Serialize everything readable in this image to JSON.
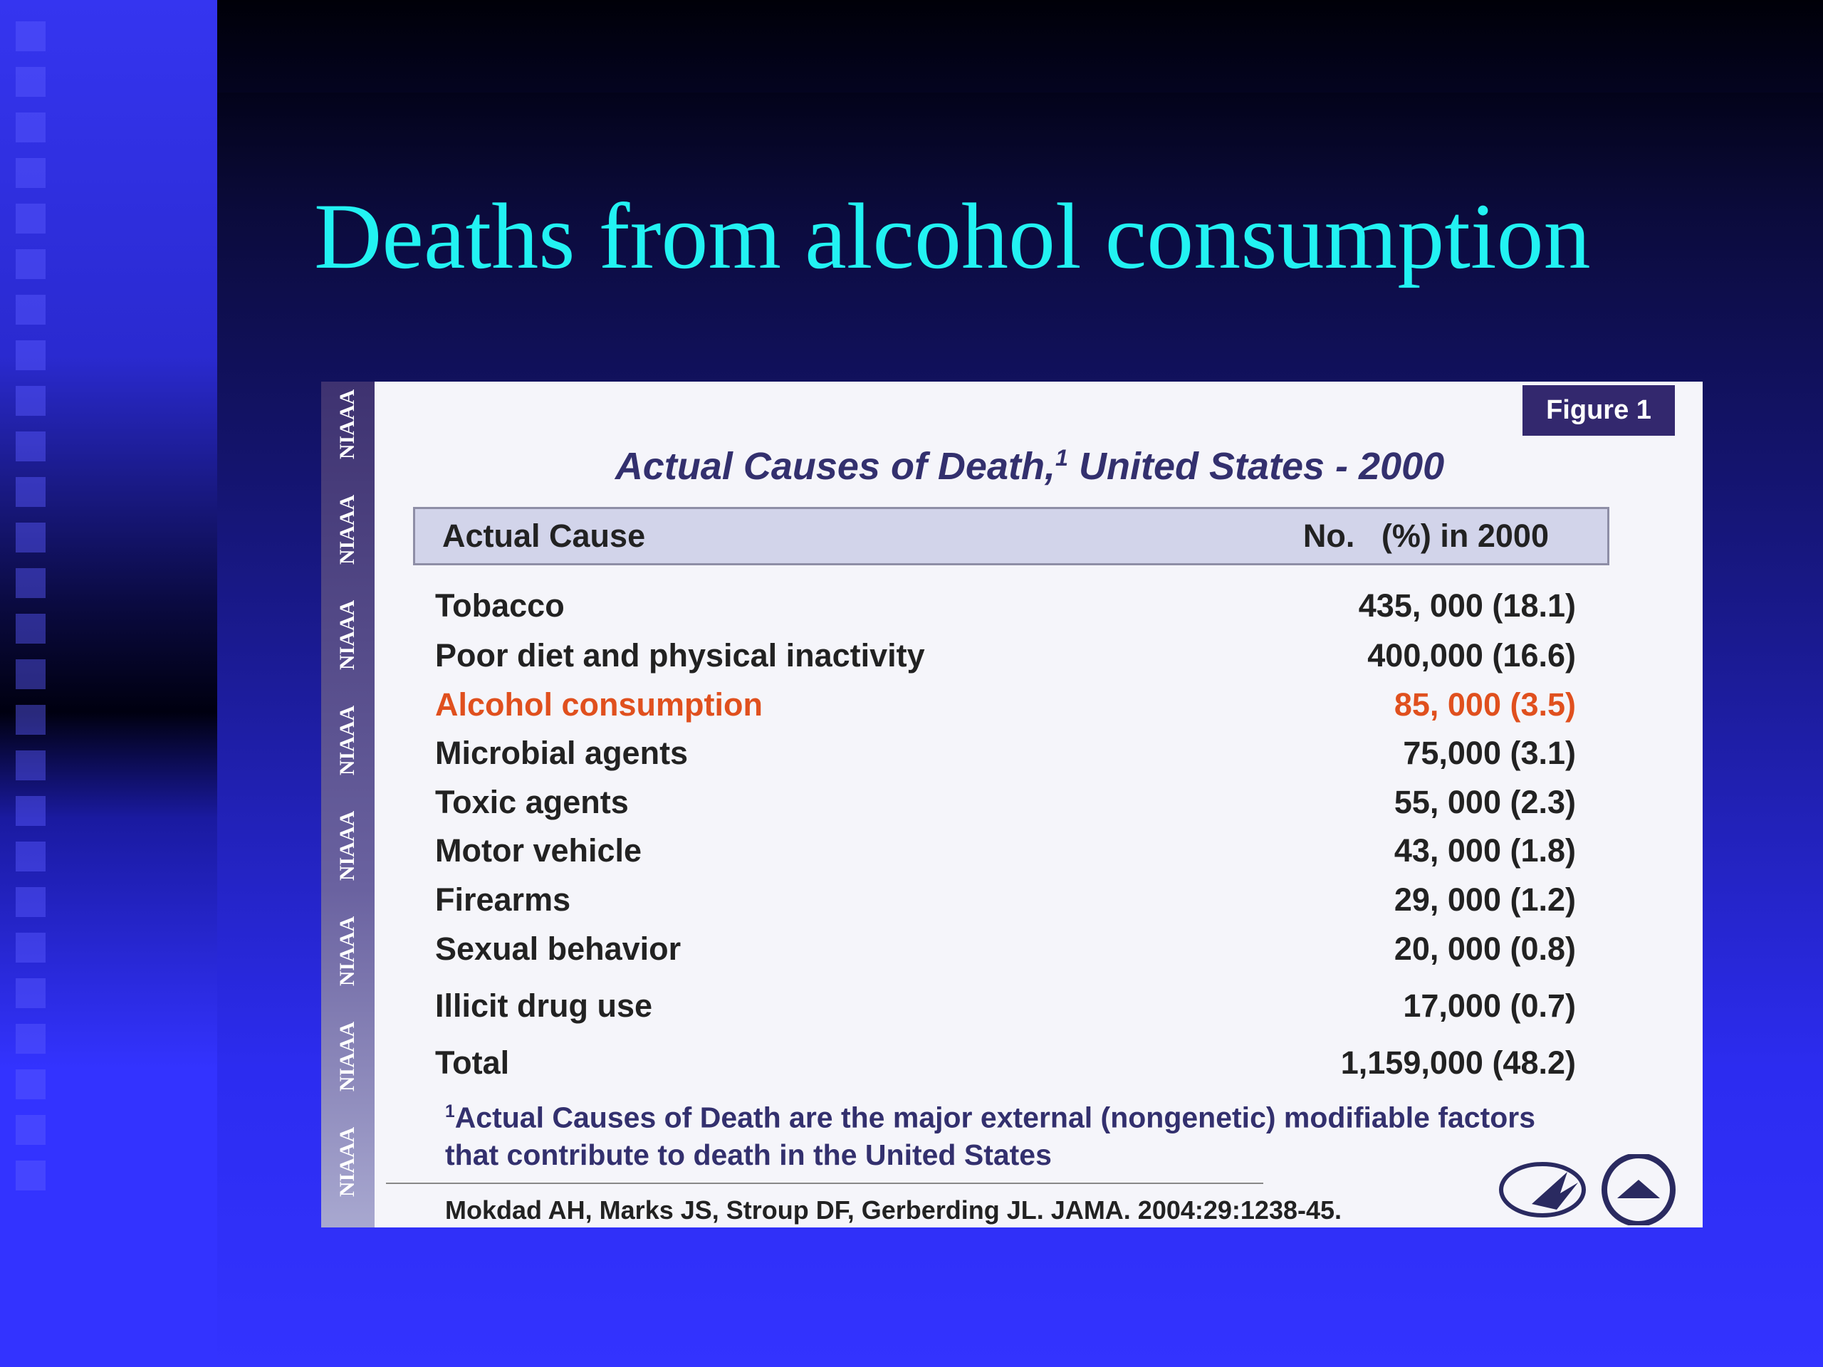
{
  "slide": {
    "title": "Deaths from alcohol consumption"
  },
  "figure": {
    "label": "Figure 1",
    "sidebar_text": "NIAAA",
    "title": {
      "text": "Actual Causes of Death,",
      "superscript": "1",
      "rest": " United States - 2000"
    },
    "table": {
      "header": [
        "Actual Cause",
        "No.   (%) in 2000"
      ],
      "rows": [
        [
          "Tobacco",
          "435, 000 (18.1)"
        ],
        [
          "Poor diet and physical inactivity",
          "400,000 (16.6)"
        ],
        [
          "Alcohol consumption",
          "85, 000 (3.5)"
        ],
        [
          "Microbial agents",
          "75,000 (3.1)"
        ],
        [
          "Toxic agents",
          "55, 000 (2.3)"
        ],
        [
          "Motor vehicle",
          "43, 000 (1.8)"
        ],
        [
          "Firearms",
          "29, 000 (1.2)"
        ],
        [
          "Sexual behavior",
          "20, 000 (0.8)"
        ],
        [
          "Illicit drug use",
          "17,000 (0.7)"
        ],
        [
          "Total",
          "1,159,000 (48.2)"
        ]
      ],
      "highlight": {
        "row": 2,
        "color": "#e0501e"
      }
    },
    "footnote": {
      "superscript": "1",
      "lines": [
        "Actual Causes of Death are the major external (nongenetic) modifiable factors",
        "that contribute to death in the United States"
      ]
    },
    "citation": "Mokdad AH, Marks JS, Stroup DF, Gerberding JL. JAMA. 2004:29:1238-45."
  }
}
